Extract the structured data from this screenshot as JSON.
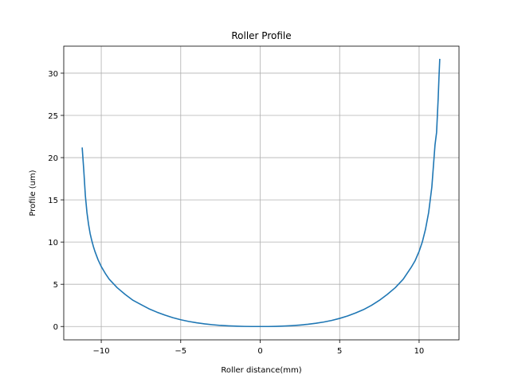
{
  "chart_data": {
    "type": "line",
    "title": "Roller Profile",
    "xlabel": "Roller distance(mm)",
    "ylabel": "Profile (um)",
    "xlim": [
      -12.36,
      12.51
    ],
    "ylim": [
      -1.58,
      33.2
    ],
    "x_ticks": [
      -10,
      -5,
      0,
      5,
      10
    ],
    "x_tick_labels": [
      "−10",
      "−5",
      "0",
      "5",
      "10"
    ],
    "y_ticks": [
      0,
      5,
      10,
      15,
      20,
      25,
      30
    ],
    "y_tick_labels": [
      "0",
      "5",
      "10",
      "15",
      "20",
      "25",
      "30"
    ],
    "grid": true,
    "series": [
      {
        "color": "#1f77b4",
        "x": [
          -11.2,
          -11.1,
          -11.0,
          -10.9,
          -10.8,
          -10.7,
          -10.6,
          -10.5,
          -10.4,
          -10.2,
          -10.0,
          -9.75,
          -9.5,
          -9.0,
          -8.5,
          -8.0,
          -7.5,
          -7.0,
          -6.5,
          -6.0,
          -5.5,
          -5.0,
          -4.5,
          -4.0,
          -3.5,
          -3.0,
          -2.5,
          -2.0,
          -1.5,
          -1.0,
          -0.5,
          0.0,
          0.5,
          1.0,
          1.5,
          2.0,
          2.5,
          3.0,
          3.5,
          4.0,
          4.5,
          5.0,
          5.5,
          6.0,
          6.5,
          7.0,
          7.5,
          8.0,
          8.5,
          9.0,
          9.5,
          9.75,
          10.0,
          10.2,
          10.4,
          10.6,
          10.8,
          10.9,
          11.0,
          11.1,
          11.2,
          11.25,
          11.3
        ],
        "y": [
          21.2,
          18.5,
          15.5,
          13.5,
          12.1,
          11.0,
          10.2,
          9.5,
          8.9,
          7.9,
          7.1,
          6.3,
          5.6,
          4.6,
          3.8,
          3.1,
          2.6,
          2.1,
          1.7,
          1.35,
          1.05,
          0.8,
          0.6,
          0.44,
          0.31,
          0.21,
          0.13,
          0.08,
          0.04,
          0.01,
          0.0,
          0.0,
          0.0,
          0.02,
          0.05,
          0.1,
          0.17,
          0.26,
          0.38,
          0.53,
          0.72,
          0.96,
          1.25,
          1.6,
          2.0,
          2.5,
          3.1,
          3.8,
          4.6,
          5.6,
          7.0,
          7.8,
          8.9,
          10.0,
          11.5,
          13.5,
          16.5,
          19.0,
          21.5,
          23.0,
          27.0,
          29.5,
          31.7
        ]
      }
    ]
  }
}
